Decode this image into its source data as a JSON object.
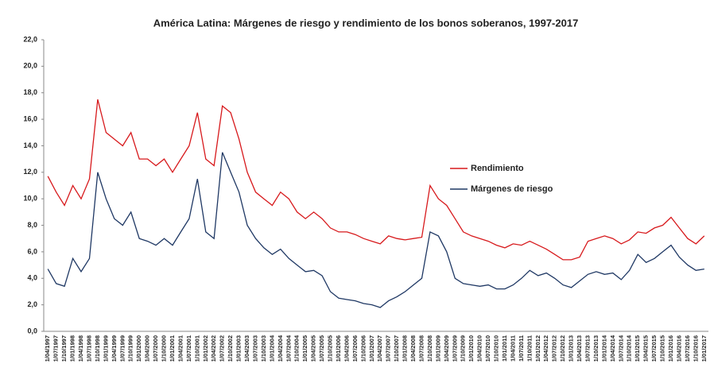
{
  "chart_data": {
    "type": "line",
    "title": "América Latina: Márgenes de riesgo y rendimiento de los bonos soberanos, 1997-2017",
    "categories": [
      "1/04/1997",
      "1/07/1997",
      "1/10/1997",
      "1/01/1998",
      "1/04/1998",
      "1/07/1998",
      "1/10/1998",
      "1/01/1999",
      "1/04/1999",
      "1/07/1999",
      "1/10/1999",
      "1/01/2000",
      "1/04/2000",
      "1/07/2000",
      "1/10/2000",
      "1/01/2001",
      "1/04/2001",
      "1/07/2001",
      "1/10/2001",
      "1/01/2002",
      "1/04/2002",
      "1/07/2002",
      "1/10/2002",
      "1/01/2003",
      "1/04/2003",
      "1/07/2003",
      "1/10/2003",
      "1/01/2004",
      "1/04/2004",
      "1/07/2004",
      "1/10/2004",
      "1/01/2005",
      "1/04/2005",
      "1/07/2005",
      "1/10/2005",
      "1/01/2006",
      "1/04/2006",
      "1/07/2006",
      "1/10/2006",
      "1/01/2007",
      "1/04/2007",
      "1/07/2007",
      "1/10/2007",
      "1/01/2008",
      "1/04/2008",
      "1/07/2008",
      "1/10/2008",
      "1/01/2009",
      "1/04/2009",
      "1/07/2009",
      "1/10/2009",
      "1/01/2010",
      "1/04/2010",
      "1/07/2010",
      "1/10/2010",
      "1/01/2011",
      "1/04/2011",
      "1/07/2011",
      "1/10/2011",
      "1/01/2012",
      "1/04/2012",
      "1/07/2012",
      "1/10/2012",
      "1/01/2013",
      "1/04/2013",
      "1/07/2013",
      "1/10/2013",
      "1/01/2014",
      "1/04/2014",
      "1/07/2014",
      "1/10/2014",
      "1/01/2015",
      "1/04/2015",
      "1/07/2015",
      "1/10/2015",
      "1/01/2016",
      "1/04/2016",
      "1/07/2016",
      "1/10/2016",
      "1/01/2017"
    ],
    "series": [
      {
        "name": "Rendimiento",
        "color": "#d7191c",
        "values": [
          11.7,
          10.5,
          9.5,
          11.0,
          10.0,
          11.5,
          17.5,
          15.0,
          14.5,
          14.0,
          15.0,
          13.0,
          13.0,
          12.5,
          13.0,
          12.0,
          13.0,
          14.0,
          16.5,
          13.0,
          12.5,
          17.0,
          16.5,
          14.5,
          12.0,
          10.5,
          10.0,
          9.5,
          10.5,
          10.0,
          9.0,
          8.5,
          9.0,
          8.5,
          7.8,
          7.5,
          7.5,
          7.3,
          7.0,
          6.8,
          6.6,
          7.2,
          7.0,
          6.9,
          7.0,
          7.1,
          11.0,
          10.0,
          9.5,
          8.5,
          7.5,
          7.2,
          7.0,
          6.8,
          6.5,
          6.3,
          6.6,
          6.5,
          6.8,
          6.5,
          6.2,
          5.8,
          5.4,
          5.4,
          5.6,
          6.8,
          7.0,
          7.2,
          7.0,
          6.6,
          6.9,
          7.5,
          7.4,
          7.8,
          8.0,
          8.6,
          7.8,
          7.0,
          6.6,
          7.2
        ]
      },
      {
        "name": "Márgenes de riesgo",
        "color": "#1f3864",
        "values": [
          4.7,
          3.6,
          3.4,
          5.5,
          4.5,
          5.5,
          12.0,
          10.0,
          8.5,
          8.0,
          9.0,
          7.0,
          6.8,
          6.5,
          7.0,
          6.5,
          7.5,
          8.5,
          11.5,
          7.5,
          7.0,
          13.5,
          12.0,
          10.5,
          8.0,
          7.0,
          6.3,
          5.8,
          6.2,
          5.5,
          5.0,
          4.5,
          4.6,
          4.2,
          3.0,
          2.5,
          2.4,
          2.3,
          2.1,
          2.0,
          1.8,
          2.3,
          2.6,
          3.0,
          3.5,
          4.0,
          7.5,
          7.2,
          6.0,
          4.0,
          3.6,
          3.5,
          3.4,
          3.5,
          3.2,
          3.2,
          3.5,
          4.0,
          4.6,
          4.2,
          4.4,
          4.0,
          3.5,
          3.3,
          3.8,
          4.3,
          4.5,
          4.3,
          4.4,
          3.9,
          4.6,
          5.8,
          5.2,
          5.5,
          6.0,
          6.5,
          5.6,
          5.0,
          4.6,
          4.7
        ]
      }
    ],
    "ylim": [
      0,
      22
    ],
    "yticks": [
      {
        "value": 0,
        "label": "0,0"
      },
      {
        "value": 2,
        "label": "2,0"
      },
      {
        "value": 4,
        "label": "4,0"
      },
      {
        "value": 6,
        "label": "6,0"
      },
      {
        "value": 8,
        "label": "8,0"
      },
      {
        "value": 10,
        "label": "10,0"
      },
      {
        "value": 12,
        "label": "12,0"
      },
      {
        "value": 14,
        "label": "14,0"
      },
      {
        "value": 16,
        "label": "16,0"
      },
      {
        "value": 18,
        "label": "18,0"
      },
      {
        "value": 20,
        "label": "20,0"
      },
      {
        "value": 22,
        "label": "22,0"
      }
    ],
    "grid": false,
    "legend": "right"
  }
}
